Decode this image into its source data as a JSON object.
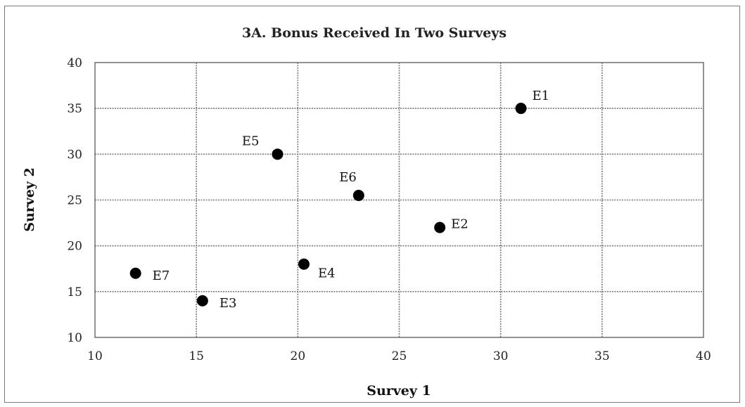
{
  "chart_data": {
    "type": "scatter",
    "title": "3A. Bonus Received In Two Surveys",
    "xlabel": "Survey 1",
    "ylabel": "Survey 2",
    "xlim": [
      10,
      40
    ],
    "ylim": [
      10,
      40
    ],
    "xticks": [
      "10",
      "15",
      "20",
      "25",
      "30",
      "35",
      "40"
    ],
    "yticks": [
      "10",
      "15",
      "20",
      "25",
      "30",
      "35",
      "40"
    ],
    "grid": true,
    "legend": "none",
    "marker_color": "#000000",
    "points": [
      {
        "label": "E1",
        "x": 31,
        "y": 35
      },
      {
        "label": "E2",
        "x": 27,
        "y": 22
      },
      {
        "label": "E3",
        "x": 15.3,
        "y": 14
      },
      {
        "label": "E4",
        "x": 20.3,
        "y": 18
      },
      {
        "label": "E5",
        "x": 19,
        "y": 30
      },
      {
        "label": "E6",
        "x": 23,
        "y": 25.5
      },
      {
        "label": "E7",
        "x": 12,
        "y": 17
      }
    ]
  }
}
